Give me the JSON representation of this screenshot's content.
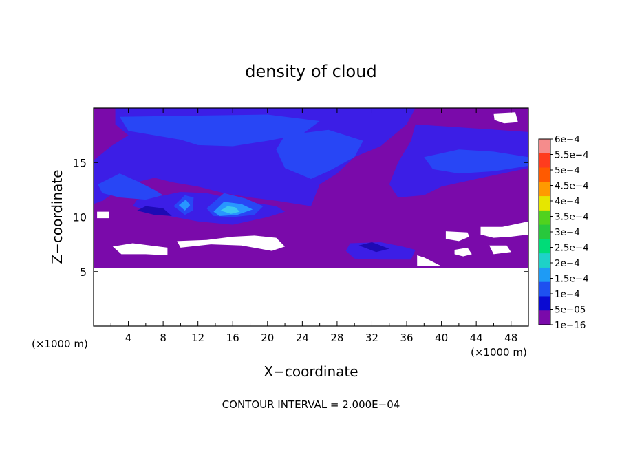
{
  "chart_data": {
    "type": "heatmap",
    "title": "density of cloud",
    "xlabel": "X−coordinate",
    "ylabel": "Z−coordinate",
    "x_unit_left": "(×1000 m)",
    "x_unit_right": "(×1000 m)",
    "xlim": [
      0,
      50
    ],
    "ylim": [
      0,
      20
    ],
    "x_ticks": [
      4,
      8,
      12,
      16,
      20,
      24,
      28,
      32,
      36,
      40,
      44,
      48
    ],
    "x_tick_labels": [
      "4",
      "8",
      "12",
      "16",
      "20",
      "24",
      "28",
      "32",
      "36",
      "40",
      "44",
      "48"
    ],
    "y_ticks": [
      5,
      10,
      15
    ],
    "y_tick_labels": [
      "5",
      "10",
      "15"
    ],
    "footnote": "CONTOUR INTERVAL = 2.000E−04",
    "colorbar": {
      "labels": [
        "6e−4",
        "5.5e−4",
        "5e−4",
        "4.5e−4",
        "4e−4",
        "3.5e−4",
        "3e−4",
        "2.5e−4",
        "2e−4",
        "1.5e−4",
        "1e−4",
        "5e−05",
        "1e−16"
      ],
      "colors": [
        "#f58c8c",
        "#ff3c1e",
        "#ff5a00",
        "#ff9a00",
        "#e6e600",
        "#50d21e",
        "#28c83c",
        "#00dc78",
        "#1ed2c8",
        "#1e9bf5",
        "#1e50f0",
        "#0a0ad2",
        "#7a0aaa"
      ]
    },
    "colors": {
      "background_band": "#7a0aaa",
      "level_low": "#3c1ee6",
      "level_mid": "#2846f5",
      "level_high": "#2896ff",
      "level_peak": "#3cc8f0",
      "dark_core": "#1e0ab4"
    },
    "regions": [
      {
        "level": "background_band",
        "poly": [
          [
            0,
            5.3
          ],
          [
            50,
            5.3
          ],
          [
            50,
            20
          ],
          [
            0,
            20
          ]
        ]
      },
      {
        "level": "level_low",
        "poly": [
          [
            2.5,
            20
          ],
          [
            37,
            20
          ],
          [
            36,
            18.5
          ],
          [
            33,
            16.5
          ],
          [
            30,
            15.5
          ],
          [
            28,
            14
          ],
          [
            26,
            13
          ],
          [
            25,
            11
          ],
          [
            21,
            11.5
          ],
          [
            18,
            11.8
          ],
          [
            15,
            12.2
          ],
          [
            12,
            12.8
          ],
          [
            9,
            13.2
          ],
          [
            7,
            13.6
          ],
          [
            5,
            13.2
          ],
          [
            3,
            12.5
          ],
          [
            1,
            11.5
          ],
          [
            0,
            11.2
          ],
          [
            0,
            15.2
          ],
          [
            2,
            16.5
          ],
          [
            4,
            17.5
          ],
          [
            2.5,
            18.5
          ]
        ]
      },
      {
        "level": "level_low",
        "poly": [
          [
            37,
            18.5
          ],
          [
            50,
            17.8
          ],
          [
            50,
            14.5
          ],
          [
            47,
            14
          ],
          [
            44,
            13.5
          ],
          [
            40,
            12.8
          ],
          [
            38,
            12
          ],
          [
            35,
            11.8
          ],
          [
            34,
            13
          ],
          [
            35,
            15
          ],
          [
            36.5,
            17
          ]
        ]
      },
      {
        "level": "level_low",
        "poly": [
          [
            4.5,
            11
          ],
          [
            8,
            10.2
          ],
          [
            12,
            9.6
          ],
          [
            16,
            9.3
          ],
          [
            20,
            10
          ],
          [
            22,
            10.5
          ],
          [
            21,
            11
          ],
          [
            17,
            11.5
          ],
          [
            13,
            12.2
          ],
          [
            10,
            12.3
          ],
          [
            7,
            11.8
          ],
          [
            5,
            11.6
          ]
        ]
      },
      {
        "level": "level_low",
        "poly": [
          [
            29.5,
            7.6
          ],
          [
            33,
            7.7
          ],
          [
            35.5,
            7.3
          ],
          [
            37,
            7
          ],
          [
            36.5,
            6.1
          ],
          [
            33,
            6.1
          ],
          [
            30,
            6.2
          ],
          [
            29,
            6.9
          ]
        ]
      },
      {
        "level": "level_mid",
        "poly": [
          [
            3,
            19.2
          ],
          [
            20,
            19.4
          ],
          [
            26,
            18.8
          ],
          [
            24,
            17.6
          ],
          [
            20,
            17
          ],
          [
            16,
            16.5
          ],
          [
            12,
            16.6
          ],
          [
            10,
            17.1
          ],
          [
            7,
            17.5
          ],
          [
            4,
            17.9
          ]
        ]
      },
      {
        "level": "level_mid",
        "poly": [
          [
            22,
            17.5
          ],
          [
            27,
            18
          ],
          [
            31,
            17
          ],
          [
            30,
            15.5
          ],
          [
            27,
            14.2
          ],
          [
            25,
            13.5
          ],
          [
            22,
            14.5
          ],
          [
            21,
            16.2
          ]
        ]
      },
      {
        "level": "level_mid",
        "poly": [
          [
            0.5,
            13
          ],
          [
            3,
            14
          ],
          [
            5,
            13.3
          ],
          [
            7,
            12.5
          ],
          [
            8,
            12
          ],
          [
            6,
            11.6
          ],
          [
            3,
            11.8
          ],
          [
            1,
            12.2
          ]
        ]
      },
      {
        "level": "level_mid",
        "poly": [
          [
            38,
            15.5
          ],
          [
            42,
            16.2
          ],
          [
            46,
            16
          ],
          [
            50,
            15.5
          ],
          [
            50,
            14.7
          ],
          [
            46,
            14.2
          ],
          [
            42,
            14
          ],
          [
            39,
            14.4
          ]
        ]
      },
      {
        "level": "level_mid",
        "poly": [
          [
            9.2,
            11
          ],
          [
            10.5,
            12
          ],
          [
            11.5,
            11.8
          ],
          [
            11.4,
            10.6
          ],
          [
            10.5,
            10.2
          ]
        ]
      },
      {
        "level": "level_mid",
        "poly": [
          [
            13,
            10.8
          ],
          [
            15,
            12.2
          ],
          [
            17.5,
            11.7
          ],
          [
            19.5,
            11
          ],
          [
            18.5,
            10.2
          ],
          [
            16,
            10
          ],
          [
            13.8,
            10.1
          ]
        ]
      },
      {
        "level": "level_high",
        "poly": [
          [
            13.8,
            10.5
          ],
          [
            15,
            11.4
          ],
          [
            17,
            11.2
          ],
          [
            18.3,
            10.7
          ],
          [
            16.5,
            10.2
          ],
          [
            14.5,
            10.1
          ]
        ]
      },
      {
        "level": "level_high",
        "poly": [
          [
            9.8,
            11.1
          ],
          [
            10.6,
            11.6
          ],
          [
            11.1,
            11.1
          ],
          [
            10.5,
            10.6
          ]
        ]
      },
      {
        "level": "level_peak",
        "poly": [
          [
            14.6,
            10.6
          ],
          [
            15.4,
            11
          ],
          [
            16.3,
            10.9
          ],
          [
            16.8,
            10.5
          ],
          [
            15.8,
            10.3
          ]
        ]
      },
      {
        "level": "dark_core",
        "poly": [
          [
            30.5,
            7.4
          ],
          [
            32,
            7.7
          ],
          [
            34,
            7.1
          ],
          [
            32.5,
            6.8
          ]
        ]
      },
      {
        "level": "dark_core",
        "poly": [
          [
            5,
            10.6
          ],
          [
            7,
            10.2
          ],
          [
            9,
            10.1
          ],
          [
            8,
            10.8
          ],
          [
            6,
            11
          ]
        ]
      }
    ],
    "missing_regions": [
      {
        "poly": [
          [
            0,
            0
          ],
          [
            50,
            0
          ],
          [
            50,
            5.3
          ],
          [
            0,
            5.3
          ]
        ]
      },
      {
        "poly": [
          [
            2.2,
            7.3
          ],
          [
            4.5,
            7.6
          ],
          [
            6.5,
            7.4
          ],
          [
            8.5,
            7.2
          ],
          [
            8.5,
            6.5
          ],
          [
            6,
            6.6
          ],
          [
            3.2,
            6.6
          ]
        ]
      },
      {
        "poly": [
          [
            9.6,
            7.8
          ],
          [
            13,
            7.9
          ],
          [
            16,
            8.2
          ],
          [
            18.5,
            8.3
          ],
          [
            21,
            8.1
          ],
          [
            22,
            7.3
          ],
          [
            20.5,
            6.9
          ],
          [
            17,
            7.4
          ],
          [
            13.5,
            7.5
          ],
          [
            10,
            7.2
          ]
        ]
      },
      {
        "position_hint": "small_hole",
        "poly": [
          [
            0.4,
            10.5
          ],
          [
            1.8,
            10.5
          ],
          [
            1.8,
            9.9
          ],
          [
            0.4,
            9.9
          ]
        ]
      },
      {
        "poly": [
          [
            37.2,
            6.5
          ],
          [
            38,
            6.3
          ],
          [
            40,
            5.5
          ],
          [
            37.2,
            5.5
          ]
        ]
      },
      {
        "poly": [
          [
            40.5,
            8.7
          ],
          [
            43,
            8.6
          ],
          [
            43.2,
            8.2
          ],
          [
            42,
            7.8
          ],
          [
            40.5,
            8.0
          ]
        ]
      },
      {
        "poly": [
          [
            41.5,
            7.0
          ],
          [
            43,
            7.2
          ],
          [
            43.5,
            6.6
          ],
          [
            42.5,
            6.4
          ],
          [
            41.5,
            6.6
          ]
        ]
      },
      {
        "poly": [
          [
            44.5,
            9.1
          ],
          [
            47,
            9.1
          ],
          [
            50,
            9.6
          ],
          [
            50,
            8.4
          ],
          [
            48,
            8.2
          ],
          [
            46,
            8.1
          ],
          [
            44.5,
            8.4
          ]
        ]
      },
      {
        "poly": [
          [
            45.5,
            7.4
          ],
          [
            47.5,
            7.4
          ],
          [
            48,
            6.8
          ],
          [
            46,
            6.6
          ]
        ]
      },
      {
        "poly": [
          [
            46,
            19.5
          ],
          [
            48.5,
            19.6
          ],
          [
            48.8,
            18.7
          ],
          [
            47.2,
            18.6
          ],
          [
            46.1,
            18.9
          ]
        ]
      }
    ]
  }
}
